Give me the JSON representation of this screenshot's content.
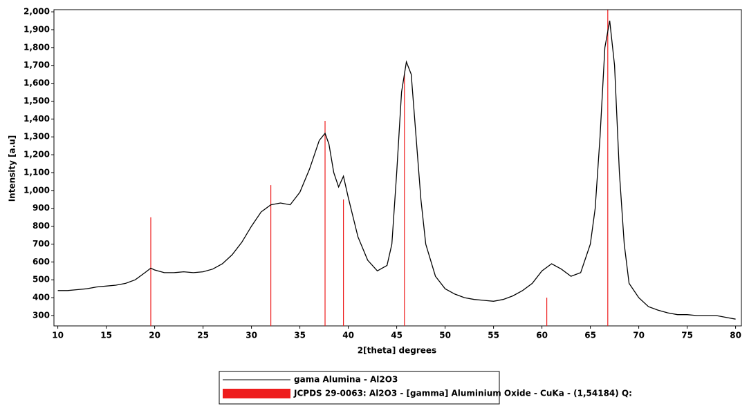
{
  "chart_data": {
    "type": "line",
    "xlabel": "2[theta] degrees",
    "ylabel": "Intensity [a.u]",
    "xlim": [
      9.6,
      80.6
    ],
    "ylim": [
      242,
      2012
    ],
    "xticks": [
      10,
      15,
      20,
      25,
      30,
      35,
      40,
      45,
      50,
      55,
      60,
      65,
      70,
      75,
      80
    ],
    "yticks": [
      300,
      400,
      500,
      600,
      700,
      800,
      900,
      {
        "value": 1000,
        "label": "1,000"
      },
      {
        "value": 1100,
        "label": "1,100"
      },
      {
        "value": 1200,
        "label": "1,200"
      },
      {
        "value": 1300,
        "label": "1,300"
      },
      {
        "value": 1400,
        "label": "1,400"
      },
      {
        "value": 1500,
        "label": "1,500"
      },
      {
        "value": 1600,
        "label": "1,600"
      },
      {
        "value": 1700,
        "label": "1,700"
      },
      {
        "value": 1800,
        "label": "1,800"
      },
      {
        "value": 1900,
        "label": "1,900"
      },
      {
        "value": 2000,
        "label": "2,000"
      }
    ],
    "series": [
      {
        "name": "gama Alumina - Al2O3",
        "color": "#000000",
        "style": "line",
        "x": [
          10,
          11,
          12,
          13,
          14,
          15,
          16,
          17,
          18,
          19,
          19.6,
          20,
          21,
          22,
          23,
          24,
          25,
          26,
          27,
          28,
          29,
          30,
          31,
          32,
          33,
          34,
          35,
          36,
          37,
          37.6,
          38,
          38.5,
          39,
          39.5,
          40,
          41,
          42,
          43,
          44,
          44.5,
          45,
          45.5,
          46,
          46.5,
          47,
          47.5,
          48,
          49,
          50,
          51,
          52,
          53,
          54,
          55,
          56,
          57,
          58,
          59,
          60,
          61,
          62,
          63,
          64,
          65,
          65.5,
          66,
          66.5,
          67,
          67.5,
          68,
          68.5,
          69,
          70,
          71,
          72,
          73,
          74,
          75,
          76,
          77,
          78,
          79,
          80
        ],
        "values": [
          440,
          440,
          445,
          450,
          460,
          465,
          470,
          480,
          500,
          540,
          565,
          555,
          540,
          540,
          545,
          540,
          545,
          560,
          590,
          640,
          710,
          800,
          880,
          920,
          930,
          920,
          990,
          1120,
          1280,
          1320,
          1260,
          1100,
          1020,
          1080,
          960,
          740,
          610,
          550,
          580,
          700,
          1100,
          1550,
          1720,
          1650,
          1300,
          950,
          700,
          520,
          450,
          420,
          400,
          390,
          385,
          380,
          390,
          410,
          440,
          480,
          550,
          590,
          560,
          520,
          540,
          700,
          900,
          1300,
          1800,
          1950,
          1700,
          1100,
          700,
          480,
          400,
          350,
          330,
          315,
          305,
          305,
          300,
          300,
          300,
          290,
          280
        ]
      },
      {
        "name": "JCPDS 29-0063: Al2O3 - [gamma] Aluminium Oxide - CuKa - (1,54184) Q:",
        "color": "#ee1c1c",
        "style": "stick",
        "x": [
          19.6,
          32.0,
          37.6,
          39.5,
          45.8,
          60.5,
          66.8
        ],
        "values": [
          850,
          1030,
          1390,
          950,
          1650,
          400,
          2010
        ]
      }
    ]
  }
}
